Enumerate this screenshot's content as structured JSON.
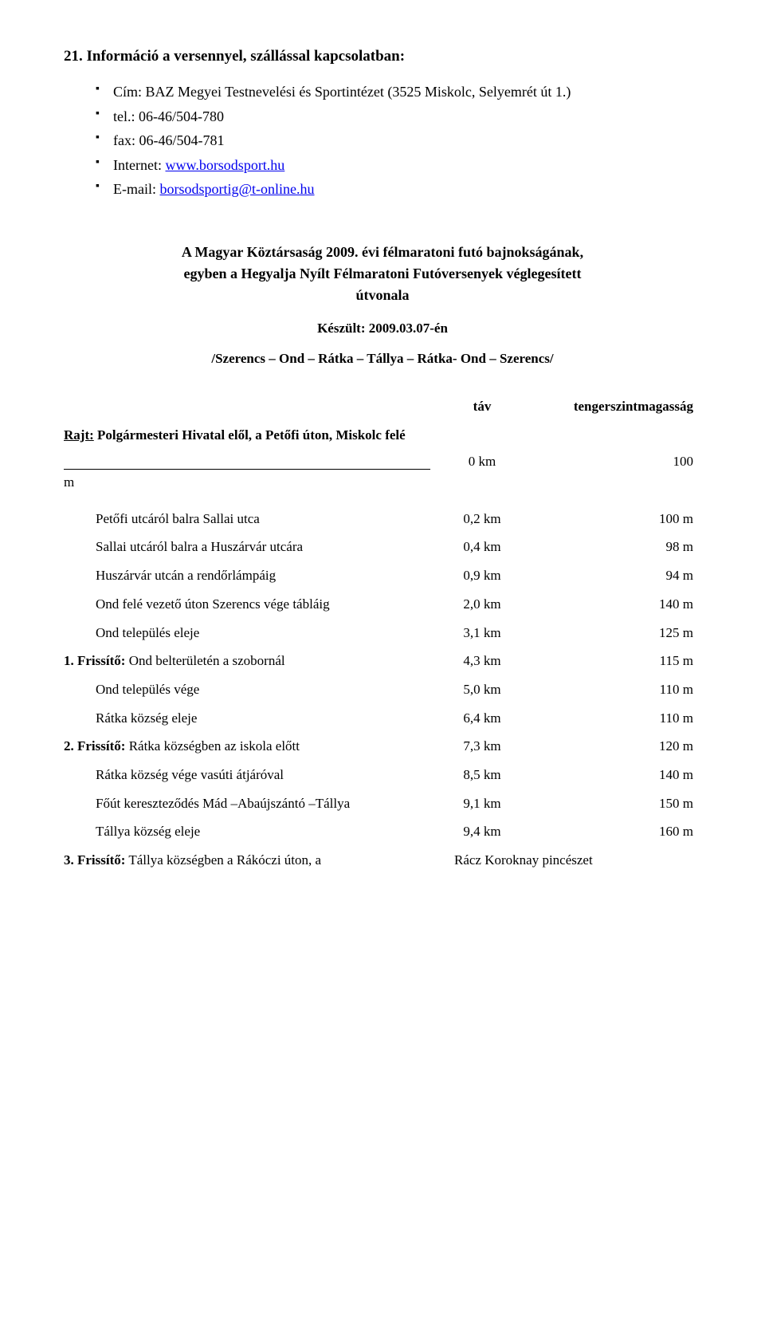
{
  "heading": "21. Információ a versennyel, szállással kapcsolatban:",
  "bullets": {
    "address": "Cím: BAZ Megyei Testnevelési és Sportintézet (3525 Miskolc, Selyemrét út 1.)",
    "tel": "tel.: 06-46/504-780",
    "fax": "fax: 06-46/504-781",
    "internet_label": "Internet: ",
    "internet_link": "www.borsodsport.hu",
    "email_label": "E-mail: ",
    "email_link": "borsodsportig@t-online.hu"
  },
  "title1": "A Magyar Köztársaság 2009. évi félmaratoni futó bajnokságának,",
  "title2": "egyben a  Hegyalja Nyílt Félmaratoni Futóversenyek véglegesített",
  "title3": "útvonala",
  "made": "Készült: 2009.03.07-én",
  "route": "/Szerencs – Ond – Rátka – Tállya – Rátka- Ond – Szerencs/",
  "col_dist": "táv",
  "col_elev": "tengerszintmagasság",
  "start_prefix": "Rajt:",
  "start_rest": " Polgármesteri Hivatal elől, a Petőfi úton, Miskolc felé",
  "zero": {
    "dist": "0  km",
    "elev": "100"
  },
  "m_label": "m",
  "rows": [
    {
      "label": "Petőfi utcáról balra Sallai utca",
      "dist": "0,2 km",
      "elev": "100 m",
      "indent": true,
      "bold": false
    },
    {
      "label": "Sallai utcáról balra a Huszárvár utcára",
      "dist": "0,4 km",
      "elev": "98 m",
      "indent": true,
      "bold": false
    },
    {
      "label": "Huszárvár utcán a rendőrlámpáig",
      "dist": "0,9 km",
      "elev": "94 m",
      "indent": true,
      "bold": false
    },
    {
      "label": "Ond felé vezető úton Szerencs vége tábláig",
      "dist": "2,0 km",
      "elev": "140 m",
      "indent": true,
      "bold": false
    },
    {
      "label": "Ond település eleje",
      "dist": "3,1 km",
      "elev": "125 m",
      "indent": true,
      "bold": false
    },
    {
      "label_bold": "1. Frissítő:",
      "label_rest": " Ond belterületén a szobornál",
      "dist": "4,3 km",
      "elev": "115 m",
      "indent": false,
      "bold": true
    },
    {
      "label": "Ond település vége",
      "dist": "5,0 km",
      "elev": "110 m",
      "indent": true,
      "bold": false
    },
    {
      "label": "Rátka község eleje",
      "dist": "6,4 km",
      "elev": "110 m",
      "indent": true,
      "bold": false
    },
    {
      "label_bold": "2. Frissítő:",
      "label_rest": " Rátka községben az iskola előtt",
      "dist": "7,3 km",
      "elev": "120 m",
      "indent": false,
      "bold": true
    },
    {
      "label": "Rátka község vége vasúti átjáróval",
      "dist": "8,5 km",
      "elev": "140 m",
      "indent": true,
      "bold": false
    },
    {
      "label": "Főút kereszteződés Mád –Abaújszántó –Tállya",
      "dist": "9,1 km",
      "elev": "150 m",
      "indent": true,
      "bold": false
    },
    {
      "label": "Tállya község eleje",
      "dist": "9,4 km",
      "elev": "160 m",
      "indent": true,
      "bold": false
    }
  ],
  "last": {
    "left_bold": "3. Frissítő:",
    "left_rest": " Tállya községben a Rákóczi úton, a",
    "right": "Rácz  Koroknay pincészet"
  }
}
